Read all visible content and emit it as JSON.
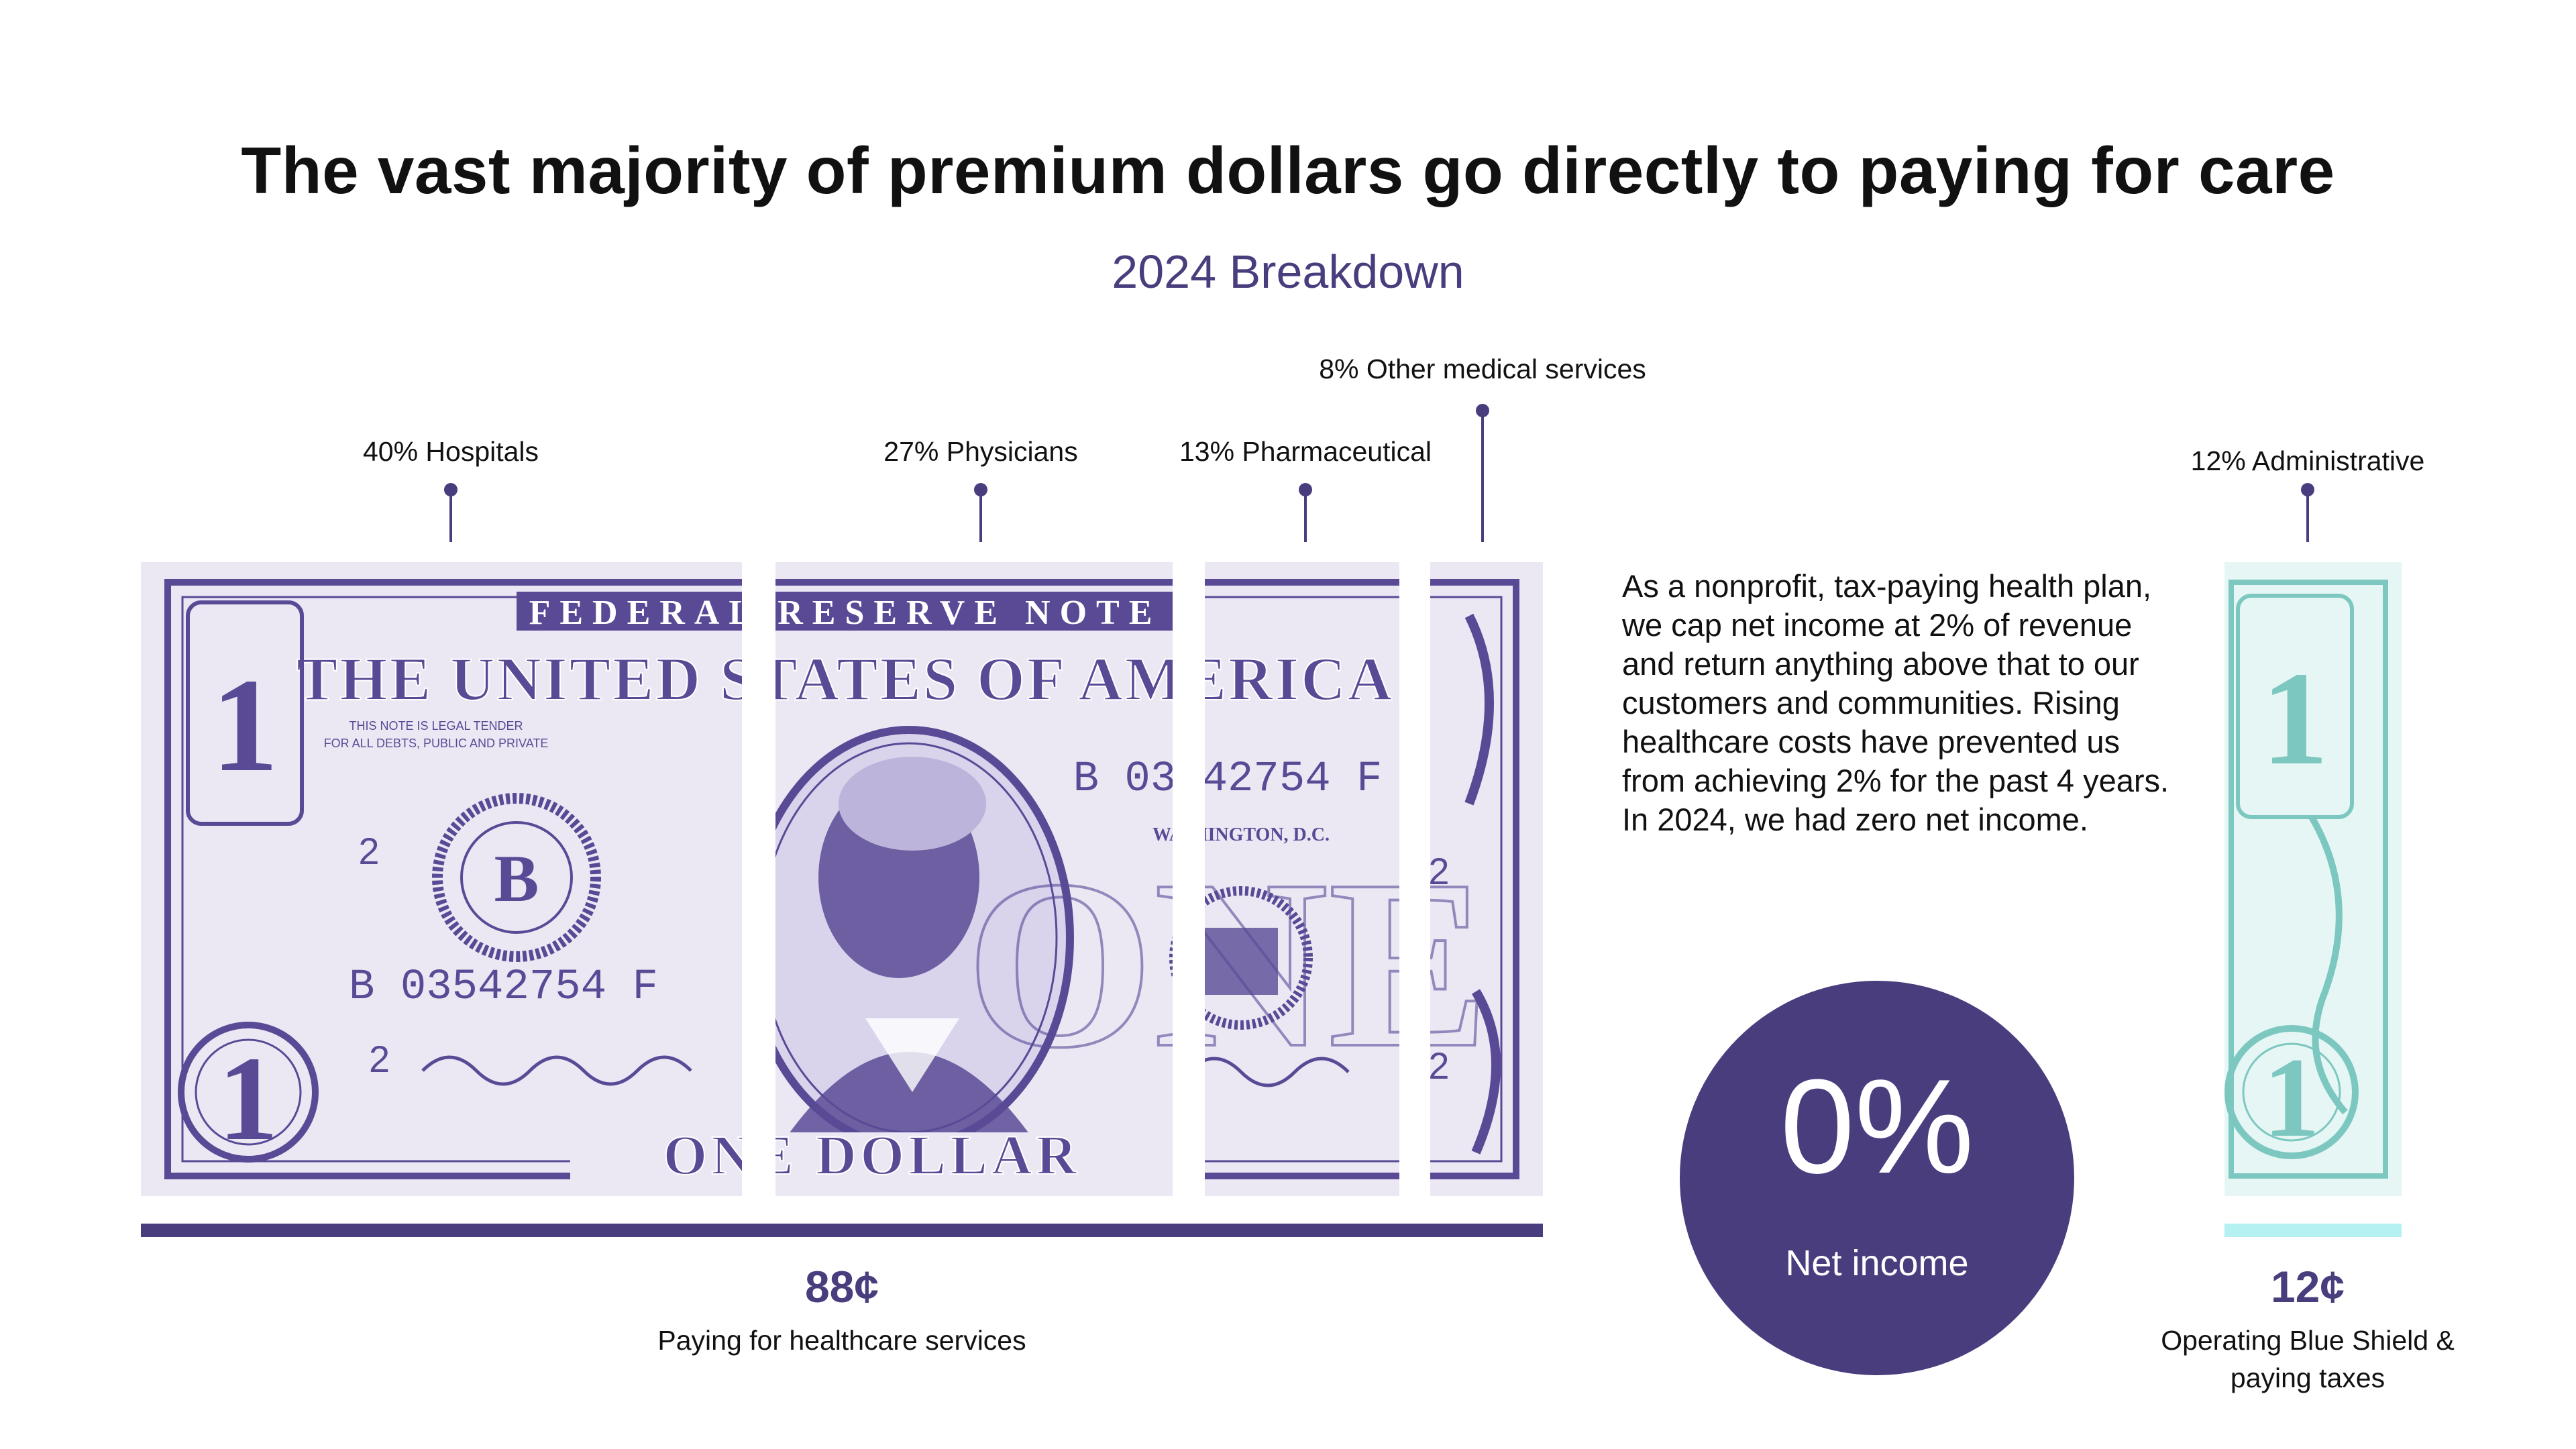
{
  "title": "The vast majority of premium dollars go directly to paying for care",
  "subtitle": "2024 Breakdown",
  "chart_data": {
    "type": "bar",
    "categories": [
      "Hospitals",
      "Physicians",
      "Pharmaceutical",
      "Other medical services",
      "Administrative"
    ],
    "values": [
      40,
      27,
      13,
      8,
      12
    ],
    "unit": "%",
    "labels": [
      "40% Hospitals",
      "27% Physicians",
      "13% Pharmaceutical",
      "8% Other medical services",
      "12% Administrative"
    ],
    "groups": [
      {
        "value": "88¢",
        "caption": "Paying for healthcare services",
        "members": [
          "Hospitals",
          "Physicians",
          "Pharmaceutical",
          "Other medical services"
        ]
      },
      {
        "value": "12¢",
        "caption": "Operating Blue Shield & paying taxes",
        "members": [
          "Administrative"
        ]
      }
    ]
  },
  "note": "As a nonprofit, tax-paying health plan, we cap net income at 2% of revenue and return anything above that to our customers and communities. Rising healthcare costs have prevented us from achieving 2% for the past 4 years. In 2024, we had zero net income.",
  "net_income": {
    "value": "0%",
    "label": "Net income"
  },
  "bill_text": {
    "top_banner": "FEDERAL RESERVE NOTE",
    "country": "THE UNITED STATES OF AMERICA",
    "legal_tender": "THIS NOTE IS LEGAL TENDER\nFOR ALL DEBTS, PUBLIC AND PRIVATE",
    "serial": "B 03542754 F",
    "city": "WASHINGTON, D.C.",
    "bottom": "ONE DOLLAR",
    "district_letter": "B",
    "district_number": "2",
    "denomination": "1"
  },
  "colors": {
    "purple": "#4a3d7e",
    "teal": "#b5f0f2",
    "bill_purple": "#5a4a96",
    "bill_teal": "#7cc8c0"
  }
}
